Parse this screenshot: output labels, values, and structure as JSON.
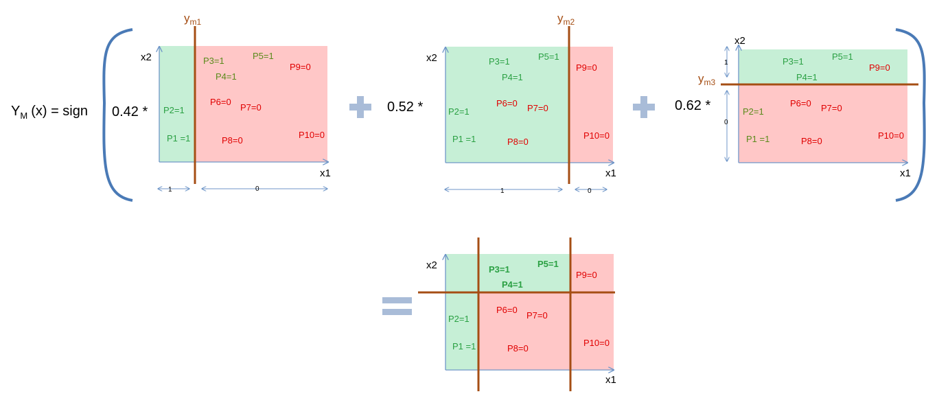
{
  "formula": {
    "lhs_main": "Y",
    "lhs_sub": "M",
    "lhs_rest": "(x) = sign",
    "coef1": "0.42 *",
    "coef2": "0.52 *",
    "coef3": "0.62 *"
  },
  "colors": {
    "green_region": "#c6efd6",
    "red_region": "#ffc7c7",
    "green_text": "#2aa043",
    "red_text": "#e00000",
    "olive_text": "#5a8a1a",
    "boundary": "#a54e14",
    "axis": "#6f96c8",
    "operator": "#a9bcd8",
    "bracket": "#4a7ab6"
  },
  "axes": {
    "x": "x1",
    "y": "x2"
  },
  "panel1": {
    "boundary_label": "y",
    "boundary_sub": "m1",
    "points": [
      "P3=1",
      "P5=1",
      "P4=1",
      "P9=0",
      "P6=0",
      "P7=0",
      "P2=1",
      "P1 =1",
      "P8=0",
      "P10=0"
    ],
    "dims": [
      "1",
      "0"
    ]
  },
  "panel2": {
    "boundary_label": "y",
    "boundary_sub": "m2",
    "points": [
      "P3=1",
      "P5=1",
      "P4=1",
      "P9=0",
      "P6=0",
      "P7=0",
      "P2=1",
      "P1 =1",
      "P8=0",
      "P10=0"
    ],
    "dims": [
      "1",
      "0"
    ]
  },
  "panel3": {
    "boundary_label": "y",
    "boundary_sub": "m3",
    "points": [
      "P3=1",
      "P5=1",
      "P4=1",
      "P9=0",
      "P6=0",
      "P7=0",
      "P2=1",
      "P1 =1",
      "P8=0",
      "P10=0"
    ],
    "dims": [
      "1",
      "0"
    ]
  },
  "result": {
    "points": [
      "P3=1",
      "P5=1",
      "P4=1",
      "P9=0",
      "P6=0",
      "P7=0",
      "P2=1",
      "P1 =1",
      "P8=0",
      "P10=0"
    ]
  }
}
